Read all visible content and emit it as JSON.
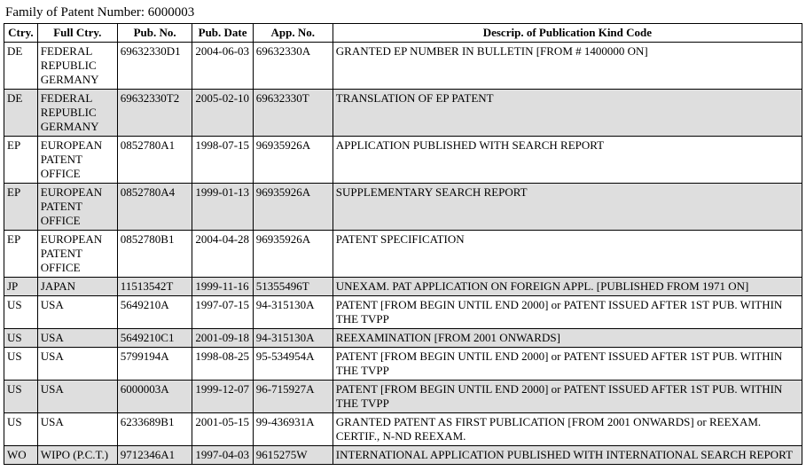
{
  "title": "Family of Patent Number: 6000003",
  "columns": [
    {
      "label": "Ctry."
    },
    {
      "label": "Full Ctry."
    },
    {
      "label": "Pub. No."
    },
    {
      "label": "Pub. Date"
    },
    {
      "label": "App. No."
    },
    {
      "label": "Descrip. of Publication Kind Code"
    }
  ],
  "rows": [
    {
      "ctry": "DE",
      "full": "FEDERAL REPUBLIC GERMANY",
      "pub": "69632330D1",
      "date": "2004-06-03",
      "app": "69632330A",
      "desc": "GRANTED EP NUMBER IN BULLETIN [FROM # 1400000 ON]"
    },
    {
      "ctry": "DE",
      "full": "FEDERAL REPUBLIC GERMANY",
      "pub": "69632330T2",
      "date": "2005-02-10",
      "app": "69632330T",
      "desc": "TRANSLATION OF EP PATENT"
    },
    {
      "ctry": "EP",
      "full": "EUROPEAN PATENT OFFICE",
      "pub": "0852780A1",
      "date": "1998-07-15",
      "app": "96935926A",
      "desc": "APPLICATION PUBLISHED WITH SEARCH REPORT"
    },
    {
      "ctry": "EP",
      "full": "EUROPEAN PATENT OFFICE",
      "pub": "0852780A4",
      "date": "1999-01-13",
      "app": "96935926A",
      "desc": "SUPPLEMENTARY SEARCH REPORT"
    },
    {
      "ctry": "EP",
      "full": "EUROPEAN PATENT OFFICE",
      "pub": "0852780B1",
      "date": "2004-04-28",
      "app": "96935926A",
      "desc": "PATENT SPECIFICATION"
    },
    {
      "ctry": "JP",
      "full": "JAPAN",
      "pub": "11513542T",
      "date": "1999-11-16",
      "app": "51355496T",
      "desc": "UNEXAM. PAT APPLICATION ON FOREIGN APPL. [PUBLISHED FROM 1971 ON]"
    },
    {
      "ctry": "US",
      "full": "USA",
      "pub": "5649210A",
      "date": "1997-07-15",
      "app": "94-315130A",
      "desc": "PATENT [FROM BEGIN UNTIL END 2000] or PATENT ISSUED AFTER 1ST PUB. WITHIN THE TVPP"
    },
    {
      "ctry": "US",
      "full": "USA",
      "pub": "5649210C1",
      "date": "2001-09-18",
      "app": "94-315130A",
      "desc": "REEXAMINATION [FROM 2001 ONWARDS]"
    },
    {
      "ctry": "US",
      "full": "USA",
      "pub": "5799194A",
      "date": "1998-08-25",
      "app": "95-534954A",
      "desc": "PATENT [FROM BEGIN UNTIL END 2000] or PATENT ISSUED AFTER 1ST PUB. WITHIN THE TVPP"
    },
    {
      "ctry": "US",
      "full": "USA",
      "pub": "6000003A",
      "date": "1999-12-07",
      "app": "96-715927A",
      "desc": "PATENT [FROM BEGIN UNTIL END 2000] or PATENT ISSUED AFTER 1ST PUB. WITHIN THE TVPP"
    },
    {
      "ctry": "US",
      "full": "USA",
      "pub": "6233689B1",
      "date": "2001-05-15",
      "app": "99-436931A",
      "desc": "GRANTED PATENT AS FIRST PUBLICATION [FROM 2001 ONWARDS] or REEXAM. CERTIF., N-ND REEXAM."
    },
    {
      "ctry": "WO",
      "full": "WIPO (P.C.T.)",
      "pub": "9712346A1",
      "date": "1997-04-03",
      "app": "9615275W",
      "desc": "INTERNATIONAL APPLICATION PUBLISHED WITH INTERNATIONAL SEARCH REPORT"
    }
  ],
  "style": {
    "odd_bg": "#ffffff",
    "even_bg": "#dedede",
    "border_color": "#000000",
    "font_family": "Times New Roman",
    "header_font_weight": "bold"
  }
}
